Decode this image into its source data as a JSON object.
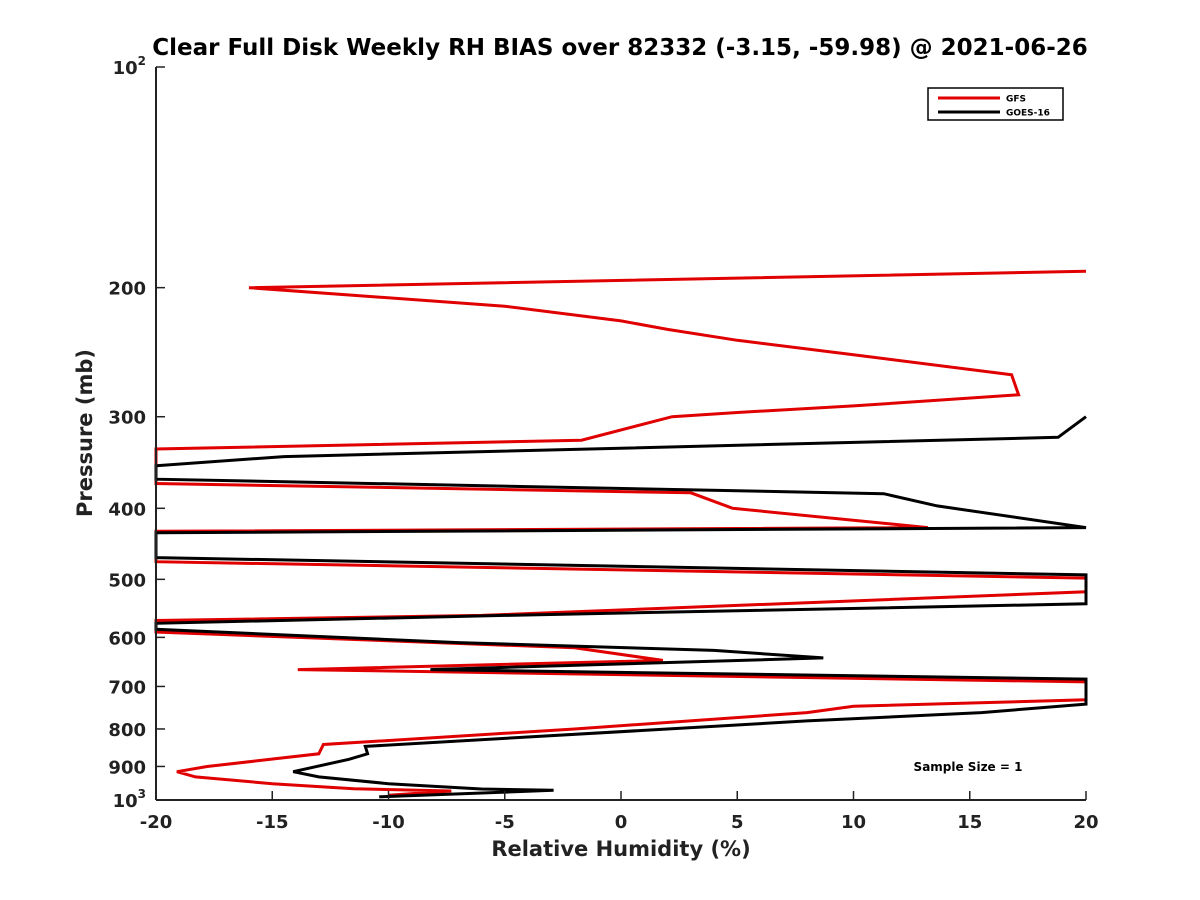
{
  "chart_data": {
    "type": "line",
    "title": "Clear Full Disk Weekly RH BIAS over 82332 (-3.15, -59.98) @ 2021-06-26",
    "xlabel": "Relative Humidity (%)",
    "ylabel": "Pressure (mb)",
    "xlim": [
      -20,
      20
    ],
    "ylim": [
      100,
      1000
    ],
    "y_scale": "log",
    "y_reversed": true,
    "x_ticks": [
      -20,
      -15,
      -10,
      -5,
      0,
      5,
      10,
      15,
      20
    ],
    "y_ticks": [
      {
        "value": 100,
        "label": "10",
        "exp": "2"
      },
      {
        "value": 200,
        "label": "200",
        "exp": ""
      },
      {
        "value": 300,
        "label": "300",
        "exp": ""
      },
      {
        "value": 400,
        "label": "400",
        "exp": ""
      },
      {
        "value": 500,
        "label": "500",
        "exp": ""
      },
      {
        "value": 600,
        "label": "600",
        "exp": ""
      },
      {
        "value": 700,
        "label": "700",
        "exp": ""
      },
      {
        "value": 800,
        "label": "800",
        "exp": ""
      },
      {
        "value": 900,
        "label": "900",
        "exp": ""
      },
      {
        "value": 1000,
        "label": "10",
        "exp": "3"
      }
    ],
    "grid": false,
    "legend_position": "top-right",
    "annotation": "Sample Size = 1",
    "series": [
      {
        "name": "GFS",
        "color": "#e00000",
        "points": [
          [
            20,
            190
          ],
          [
            -16,
            200
          ],
          [
            -5,
            212
          ],
          [
            0,
            222
          ],
          [
            2,
            228
          ],
          [
            5,
            236
          ],
          [
            10,
            247
          ],
          [
            16.8,
            263
          ],
          [
            17.1,
            280
          ],
          [
            10,
            290
          ],
          [
            5,
            296
          ],
          [
            2.2,
            300
          ],
          [
            -1.7,
            323
          ],
          [
            -20,
            332
          ],
          [
            -20,
            370
          ],
          [
            3,
            381
          ],
          [
            4.8,
            400
          ],
          [
            13.2,
            425
          ],
          [
            -20,
            430
          ],
          [
            -20,
            473
          ],
          [
            20,
            498
          ],
          [
            20,
            520
          ],
          [
            -6,
            560
          ],
          [
            -20,
            569
          ],
          [
            -20,
            590
          ],
          [
            -2,
            620
          ],
          [
            1.8,
            645
          ],
          [
            -13.9,
            664
          ],
          [
            20,
            690
          ],
          [
            20,
            730
          ],
          [
            10,
            745
          ],
          [
            8,
            760
          ],
          [
            -2,
            800
          ],
          [
            -12.8,
            840
          ],
          [
            -13,
            865
          ],
          [
            -17.8,
            900
          ],
          [
            -19.1,
            915
          ],
          [
            -18.3,
            930
          ],
          [
            -15,
            950
          ],
          [
            -11.5,
            965
          ],
          [
            -7.3,
            972
          ],
          [
            -10,
            985
          ]
        ]
      },
      {
        "name": "GOES-16",
        "color": "#000000",
        "points": [
          [
            20,
            300
          ],
          [
            18.8,
            320
          ],
          [
            -14.5,
            340
          ],
          [
            -20,
            350
          ],
          [
            -20,
            365
          ],
          [
            11.3,
            382
          ],
          [
            13.6,
            397
          ],
          [
            20,
            425
          ],
          [
            -20,
            432
          ],
          [
            -20,
            467
          ],
          [
            20,
            493
          ],
          [
            20,
            540
          ],
          [
            -5,
            560
          ],
          [
            -20,
            574
          ],
          [
            -20,
            585
          ],
          [
            -7,
            610
          ],
          [
            4,
            625
          ],
          [
            8.7,
            640
          ],
          [
            -8.2,
            664
          ],
          [
            20,
            684
          ],
          [
            20,
            740
          ],
          [
            15.5,
            760
          ],
          [
            8,
            780
          ],
          [
            2,
            800
          ],
          [
            -11,
            845
          ],
          [
            -10.9,
            865
          ],
          [
            -11.7,
            880
          ],
          [
            -14.1,
            915
          ],
          [
            -13,
            930
          ],
          [
            -10,
            950
          ],
          [
            -6,
            966
          ],
          [
            -2.9,
            970
          ],
          [
            -10.4,
            990
          ]
        ]
      }
    ]
  }
}
